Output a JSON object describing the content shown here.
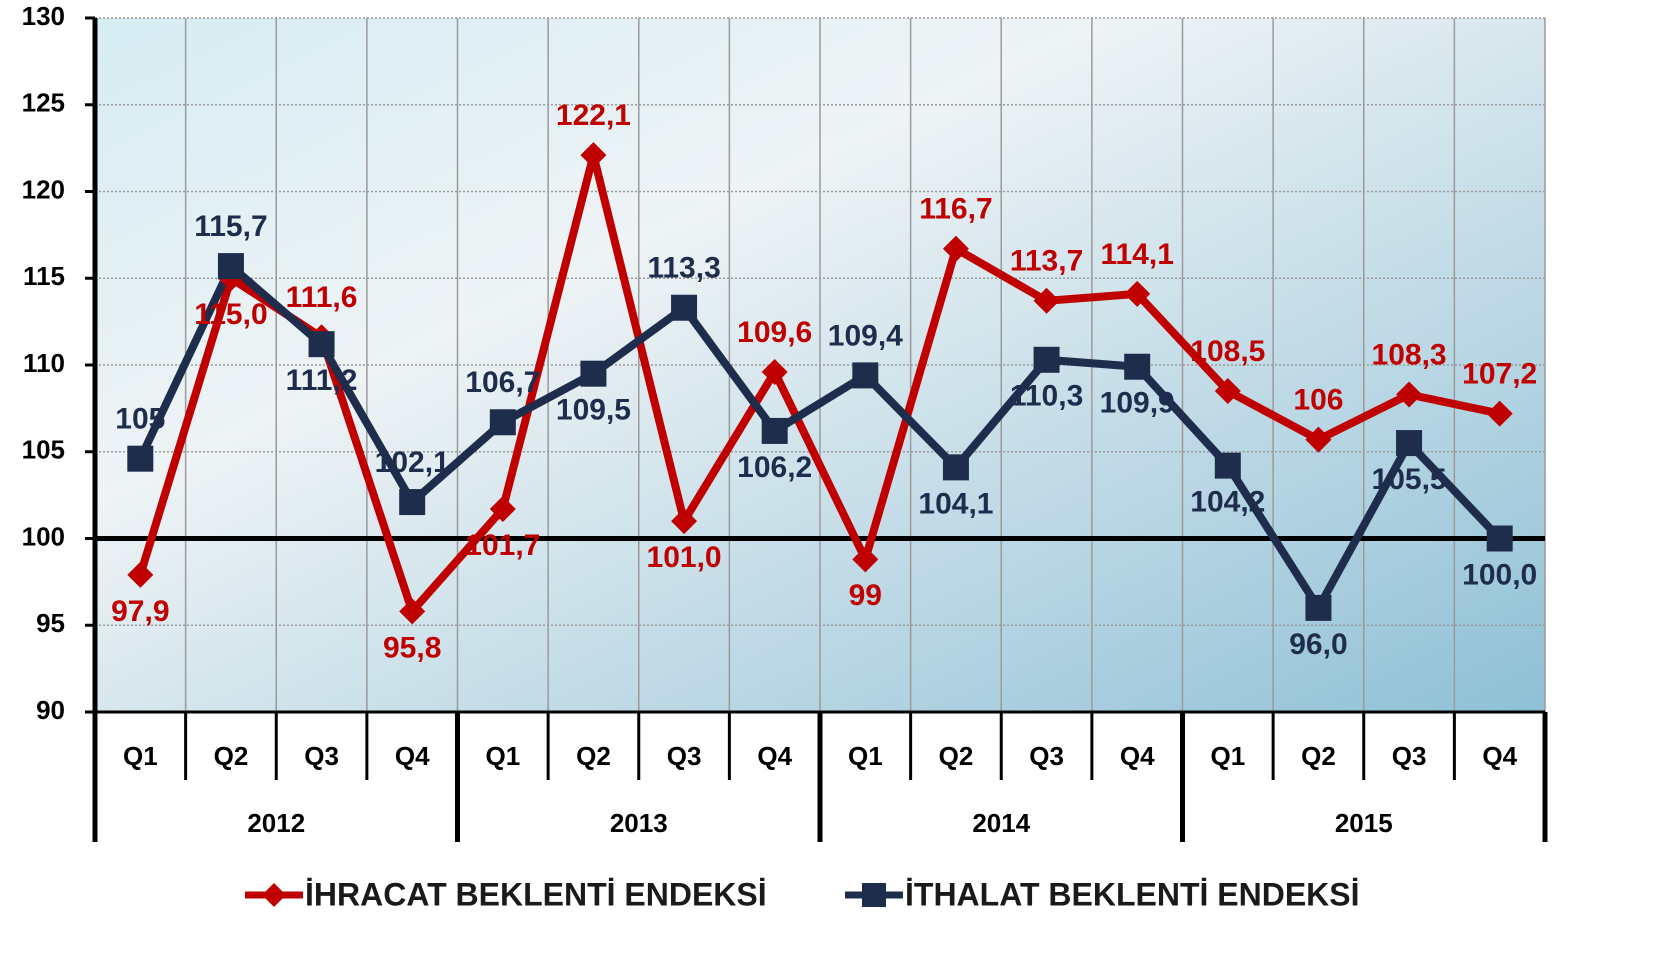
{
  "chart_data": {
    "type": "line",
    "categories": [
      "Q1",
      "Q2",
      "Q3",
      "Q4",
      "Q1",
      "Q2",
      "Q3",
      "Q4",
      "Q1",
      "Q2",
      "Q3",
      "Q4",
      "Q1",
      "Q2",
      "Q3",
      "Q4"
    ],
    "x_groups": [
      "2012",
      "2013",
      "2014",
      "2015"
    ],
    "series": [
      {
        "name": "İHRACAT BEKLENTİ ENDEKSİ",
        "color": "#c00000",
        "marker": "diamond",
        "values": [
          97.9,
          115.0,
          111.6,
          95.8,
          101.7,
          122.1,
          101.0,
          109.6,
          98.8,
          116.7,
          113.7,
          114.1,
          108.5,
          105.7,
          108.3,
          107.2
        ],
        "value_labels": [
          "97,9",
          "115,0",
          "111,6",
          "95,8",
          "101,7",
          "122,1",
          "101,0",
          "109,6",
          "99",
          "116,7",
          "113,7",
          "114,1",
          "108,5",
          "106",
          "108,3",
          "107,2"
        ]
      },
      {
        "name": "İTHALAT BEKLENTİ ENDEKSİ",
        "color": "#1f2d4d",
        "marker": "square",
        "values": [
          104.6,
          115.7,
          111.2,
          102.1,
          106.7,
          109.5,
          113.3,
          106.2,
          109.4,
          104.1,
          110.3,
          109.9,
          104.2,
          96.0,
          105.5,
          100.0
        ],
        "value_labels": [
          "105",
          "115,7",
          "111,2",
          "102,1",
          "106,7",
          "109,5",
          "113,3",
          "106,2",
          "109,4",
          "104,1",
          "110,3",
          "109,9",
          "104,2",
          "96,0",
          "105,5",
          "100,0"
        ]
      }
    ],
    "ylim": [
      90,
      130
    ],
    "yticks": [
      90,
      95,
      100,
      105,
      110,
      115,
      120,
      125,
      130
    ],
    "reference_line": 100,
    "grid": true,
    "legend": "bottom"
  }
}
